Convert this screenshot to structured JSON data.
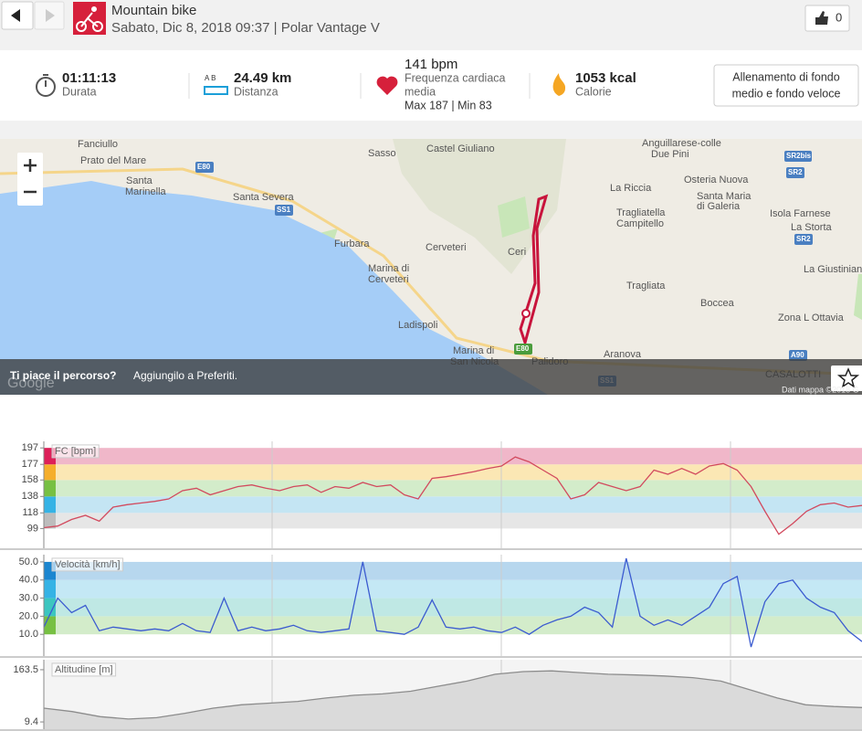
{
  "header": {
    "title": "Mountain bike",
    "subtitle": "Sabato, Dic 8, 2018 09:37 | Polar Vantage V",
    "likes": "0"
  },
  "summary": {
    "duration": {
      "value": "01:11:13",
      "label": "Durata"
    },
    "distance": {
      "icon": "A   B",
      "value": "24.49 km",
      "label": "Distanza"
    },
    "heart_rate": {
      "value": "141 bpm",
      "label_lines": [
        "Frequenza cardiaca",
        "media"
      ],
      "range": "Max 187  |  Min 83"
    },
    "calories": {
      "value": "1053 kcal",
      "label": "Calorie"
    },
    "training_type": [
      "Allenamento di fondo",
      "medio e fondo veloce"
    ]
  },
  "map": {
    "labels": [
      "Fanciullo",
      "Prato del Mare",
      "Santa",
      "Marinella",
      "Santa Severa",
      "Sasso",
      "Castel Giuliano",
      "Anguillarese-colle",
      "Due Pini",
      "Osteria Nuova",
      "La Riccia",
      "Santa Maria",
      "di Galeria",
      "Tragliatella",
      "Campitello",
      "Isola Farnese",
      "La Storta",
      "Furbara",
      "Cerveteri",
      "Ceri",
      "Marina di",
      "Cerveteri",
      "Tragliata",
      "Boccea",
      "La Giustinian",
      "Zona L Ottavia",
      "Ladispoli",
      "Marina di",
      "San Nicola",
      "Palidoro",
      "Aranova",
      "CASALOTTI"
    ],
    "shields": [
      "E80",
      "SS1",
      "SR2bis",
      "SR2",
      "SR2",
      "E80",
      "SS1",
      "A90"
    ],
    "prompt": {
      "question": "Ti piace il percorso?",
      "action": "Aggiungilo a Preferiti."
    },
    "google": "Google",
    "attribution": "Dati mappa ©2018 G"
  },
  "chart_data": [
    {
      "type": "line",
      "title": "FC [bpm]",
      "color": "#d24a5e",
      "ylim": [
        75,
        205
      ],
      "yticks": [
        99,
        118,
        138,
        158,
        177,
        197
      ],
      "zone_colors": [
        "#e6e6e6",
        "#c4e5f3",
        "#d3ecca",
        "#fbe7b4",
        "#f0b7c9"
      ],
      "strip_colors": [
        "#bdbdbd",
        "#35b3e5",
        "#77c043",
        "#f5ae2c",
        "#dd2059"
      ],
      "values": [
        100,
        102,
        110,
        115,
        108,
        125,
        128,
        130,
        132,
        135,
        145,
        148,
        140,
        145,
        150,
        152,
        148,
        145,
        150,
        152,
        143,
        150,
        148,
        155,
        150,
        152,
        140,
        135,
        160,
        162,
        165,
        168,
        172,
        175,
        186,
        180,
        170,
        160,
        135,
        140,
        155,
        150,
        145,
        150,
        170,
        165,
        172,
        165,
        175,
        178,
        170,
        150,
        120,
        92,
        105,
        120,
        128,
        130,
        125,
        127
      ]
    },
    {
      "type": "line",
      "title": "Velocità [km/h]",
      "color": "#3b5bd0",
      "ylim": [
        -2,
        54
      ],
      "yticks": [
        {
          "value": 10,
          "label": "10.0"
        },
        {
          "value": 20,
          "label": "20.0"
        },
        {
          "value": 30,
          "label": "30.0"
        },
        {
          "value": 40,
          "label": "40.0"
        },
        {
          "value": 50,
          "label": "50.0"
        }
      ],
      "zone_colors": [
        "#d3ecca",
        "#bfe8e4",
        "#c4e8f5",
        "#b7d7ee"
      ],
      "strip_colors": [
        "#77c043",
        "#3cc6c0",
        "#35b3e5",
        "#1c86d0"
      ],
      "values": [
        14,
        30,
        22,
        26,
        12,
        14,
        13,
        12,
        13,
        12,
        16,
        12,
        11,
        30,
        12,
        14,
        12,
        13,
        15,
        12,
        11,
        12,
        13,
        50,
        12,
        11,
        10,
        14,
        29,
        14,
        13,
        14,
        12,
        11,
        14,
        10,
        15,
        18,
        20,
        25,
        22,
        14,
        52,
        20,
        15,
        18,
        15,
        20,
        25,
        38,
        42,
        3,
        28,
        38,
        40,
        30,
        25,
        22,
        12,
        6
      ]
    },
    {
      "type": "area",
      "title": "Altitudine [m]",
      "color": "#8c8c8c",
      "fill": "#dadada",
      "ylim": [
        -12,
        193
      ],
      "yticks": [
        9.4,
        163.5
      ],
      "values": [
        50,
        40,
        25,
        18,
        22,
        35,
        50,
        60,
        65,
        70,
        80,
        88,
        92,
        100,
        115,
        130,
        150,
        158,
        160,
        155,
        150,
        148,
        145,
        140,
        130,
        105,
        80,
        60,
        55,
        52
      ]
    }
  ]
}
